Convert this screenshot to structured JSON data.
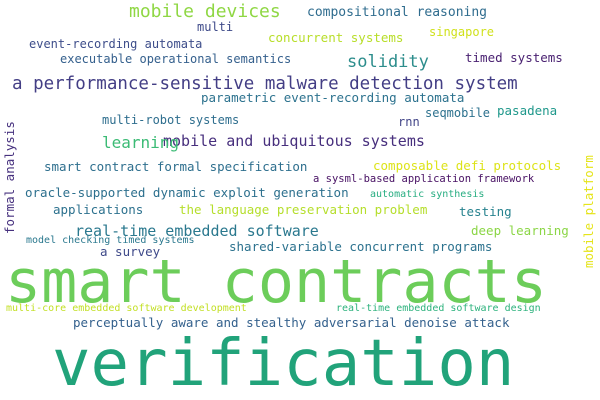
{
  "words": [
    {
      "text": "verification",
      "color": "#21a37a"
    },
    {
      "text": "smart contracts",
      "color": "#6ccd5a"
    },
    {
      "text": "a performance-sensitive malware detection system",
      "color": "#433e85"
    },
    {
      "text": "mobile devices",
      "color": "#8fd744"
    },
    {
      "text": "solidity",
      "color": "#2c8d8c"
    },
    {
      "text": "mobile and ubiquitous systems",
      "color": "#472f7d"
    },
    {
      "text": "learning",
      "color": "#3bbb75"
    },
    {
      "text": "real-time embedded software",
      "color": "#2a788e"
    },
    {
      "text": "compositional reasoning",
      "color": "#2f6c8e"
    },
    {
      "text": "multi",
      "color": "#3e4a89"
    },
    {
      "text": "event-recording automata",
      "color": "#3d4d8a"
    },
    {
      "text": "concurrent systems",
      "color": "#b8de29"
    },
    {
      "text": "singapore",
      "color": "#d0e11c"
    },
    {
      "text": "executable operational semantics",
      "color": "#35608d"
    },
    {
      "text": "timed systems",
      "color": "#481f70"
    },
    {
      "text": "parametric event-recording automata",
      "color": "#2c728e"
    },
    {
      "text": "multi-robot systems",
      "color": "#2e6e8e"
    },
    {
      "text": "pasadena",
      "color": "#1f988b"
    },
    {
      "text": "seqmobile",
      "color": "#2c718e"
    },
    {
      "text": "rnn",
      "color": "#414487"
    },
    {
      "text": "formal analysis",
      "color": "#46307e"
    },
    {
      "text": "mobile platform",
      "color": "#e5e419"
    },
    {
      "text": "smart contract formal specification",
      "color": "#2e6f8e"
    },
    {
      "text": "composable defi protocols",
      "color": "#dde318"
    },
    {
      "text": "a sysml-based application framework",
      "color": "#471063"
    },
    {
      "text": "oracle-supported dynamic exploit generation",
      "color": "#2d708e"
    },
    {
      "text": "automatic synthesis",
      "color": "#27ad81"
    },
    {
      "text": "applications",
      "color": "#2c718e"
    },
    {
      "text": "the language preservation problem",
      "color": "#b5de2b"
    },
    {
      "text": "testing",
      "color": "#26828e"
    },
    {
      "text": "deep learning",
      "color": "#8bd646"
    },
    {
      "text": "model checking timed systems",
      "color": "#2a788e"
    },
    {
      "text": "shared-variable concurrent programs",
      "color": "#2c728e"
    },
    {
      "text": "a survey",
      "color": "#3e4989"
    },
    {
      "text": "multi-core embedded software development",
      "color": "#c2df23"
    },
    {
      "text": "real-time embedded software design",
      "color": "#2db27d"
    },
    {
      "text": "perceptually aware and stealthy adversarial denoise attack",
      "color": "#34618d"
    }
  ]
}
